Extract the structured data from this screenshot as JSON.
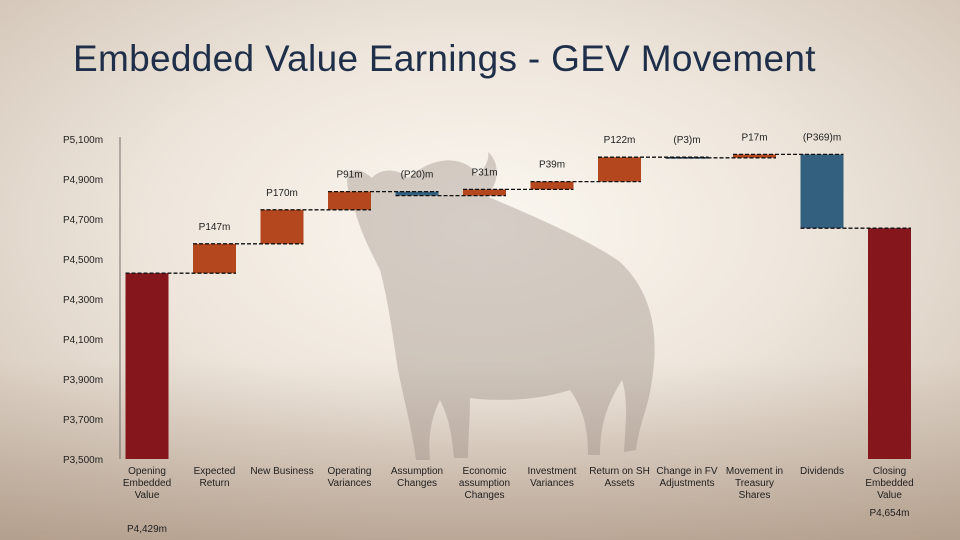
{
  "slide": {
    "title": "Embedded Value Earnings - GEV Movement"
  },
  "background": {
    "description_icon": "bull-silhouette-icon"
  },
  "chart_data": {
    "type": "bar",
    "subtype": "waterfall",
    "title": "",
    "xlabel": "",
    "ylabel": "",
    "ylim": [
      3500,
      5100
    ],
    "yticks": [
      3500,
      3700,
      3900,
      4100,
      4300,
      4500,
      4700,
      4900,
      5100
    ],
    "ytick_labels": [
      "P3,500m",
      "P3,700m",
      "P3,900m",
      "P4,100m",
      "P4,300m",
      "P4,500m",
      "P4,700m",
      "P4,900m",
      "P5,100m"
    ],
    "grid": false,
    "colors": {
      "total": "#84161c",
      "increase": "#b5471e",
      "decrease": "#33607f",
      "connector": "#111111"
    },
    "steps": [
      {
        "category": [
          "Opening",
          "Embedded",
          "Value"
        ],
        "value": 4429,
        "kind": "total",
        "label": "P4,429m"
      },
      {
        "category": [
          "Expected",
          "Return"
        ],
        "value": 147,
        "kind": "increase",
        "label": "P147m"
      },
      {
        "category": [
          "New Business"
        ],
        "value": 170,
        "kind": "increase",
        "label": "P170m"
      },
      {
        "category": [
          "Operating",
          "Variances"
        ],
        "value": 91,
        "kind": "increase",
        "label": "P91m"
      },
      {
        "category": [
          "Assumption",
          "Changes"
        ],
        "value": -20,
        "kind": "decrease",
        "label": "(P20)m"
      },
      {
        "category": [
          "Economic",
          "assumption",
          "Changes"
        ],
        "value": 31,
        "kind": "increase",
        "label": "P31m"
      },
      {
        "category": [
          "Investment",
          "Variances"
        ],
        "value": 39,
        "kind": "increase",
        "label": "P39m"
      },
      {
        "category": [
          "Return on SH",
          "Assets"
        ],
        "value": 122,
        "kind": "increase",
        "label": "P122m"
      },
      {
        "category": [
          "Change in FV",
          "Adjustments"
        ],
        "value": -3,
        "kind": "decrease",
        "label": "(P3)m"
      },
      {
        "category": [
          "Movement in",
          "Treasury",
          "Shares"
        ],
        "value": 17,
        "kind": "increase",
        "label": "P17m"
      },
      {
        "category": [
          "Dividends"
        ],
        "value": -369,
        "kind": "decrease",
        "label": "(P369)m"
      },
      {
        "category": [
          "Closing",
          "Embedded",
          "Value"
        ],
        "value": 4654,
        "kind": "total",
        "label": "P4,654m"
      }
    ]
  }
}
